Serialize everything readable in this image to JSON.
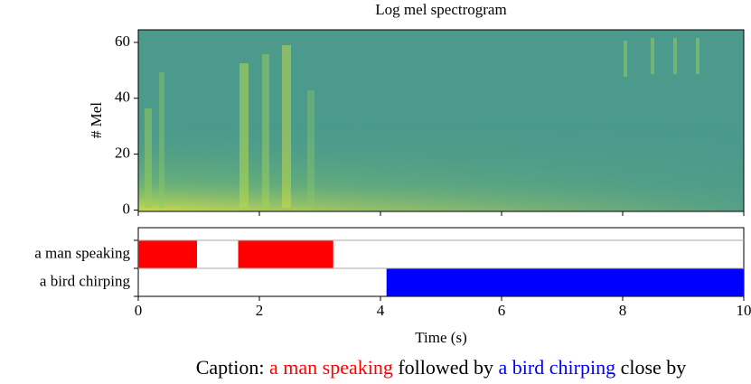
{
  "chart_data": [
    {
      "type": "spectrogram",
      "title": "Log mel spectrogram",
      "ylabel": "# Mel",
      "ylim": [
        -0.5,
        64.5
      ],
      "yticks": [
        0,
        20,
        40,
        60
      ]
    },
    {
      "type": "timeline",
      "xlabel": "Time (s)",
      "xlim": [
        0,
        10
      ],
      "xticks": [
        0,
        2,
        4,
        6,
        8,
        10
      ],
      "series": [
        {
          "name": "a man speaking",
          "color": "#ff0000",
          "segments": [
            [
              0,
              0.97
            ],
            [
              1.65,
              3.22
            ]
          ]
        },
        {
          "name": "a bird chirping",
          "color": "#0000ff",
          "segments": [
            [
              4.1,
              10
            ]
          ]
        }
      ]
    }
  ],
  "caption": [
    {
      "text": "Caption: "
    },
    {
      "text": "a man speaking",
      "color": "#ff0000"
    },
    {
      "text": " followed by "
    },
    {
      "text": "a bird chirping",
      "color": "#0000ff"
    },
    {
      "text": " close by"
    }
  ]
}
